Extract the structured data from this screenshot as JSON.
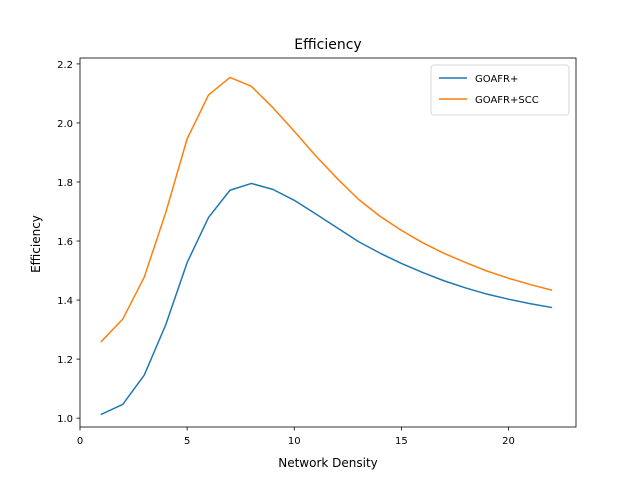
{
  "chart_data": {
    "type": "line",
    "title": "Efficiency",
    "xlabel": "Network Density",
    "ylabel": "Efficiency",
    "xlim": [
      0,
      23.15
    ],
    "ylim": [
      0.97,
      2.22
    ],
    "xticks": [
      0,
      5,
      10,
      15,
      20
    ],
    "yticks": [
      1.0,
      1.2,
      1.4,
      1.6,
      1.8,
      2.0,
      2.2
    ],
    "grid": false,
    "legend_position": "top-right",
    "x": [
      1,
      2,
      3,
      4,
      5,
      6,
      7,
      8,
      9,
      10,
      11,
      12,
      13,
      14,
      15,
      16,
      17,
      18,
      19,
      20,
      21,
      22
    ],
    "series": [
      {
        "name": "GOAFR+",
        "color": "#1f77b4",
        "values": [
          1.013,
          1.047,
          1.146,
          1.316,
          1.527,
          1.68,
          1.772,
          1.795,
          1.775,
          1.738,
          1.692,
          1.645,
          1.598,
          1.559,
          1.524,
          1.493,
          1.465,
          1.441,
          1.42,
          1.403,
          1.388,
          1.375
        ]
      },
      {
        "name": "GOAFR+SCC",
        "color": "#ff7f0e",
        "values": [
          1.26,
          1.336,
          1.478,
          1.696,
          1.946,
          2.095,
          2.154,
          2.124,
          2.052,
          1.972,
          1.889,
          1.812,
          1.741,
          1.684,
          1.636,
          1.594,
          1.558,
          1.527,
          1.498,
          1.474,
          1.453,
          1.434
        ]
      }
    ]
  }
}
